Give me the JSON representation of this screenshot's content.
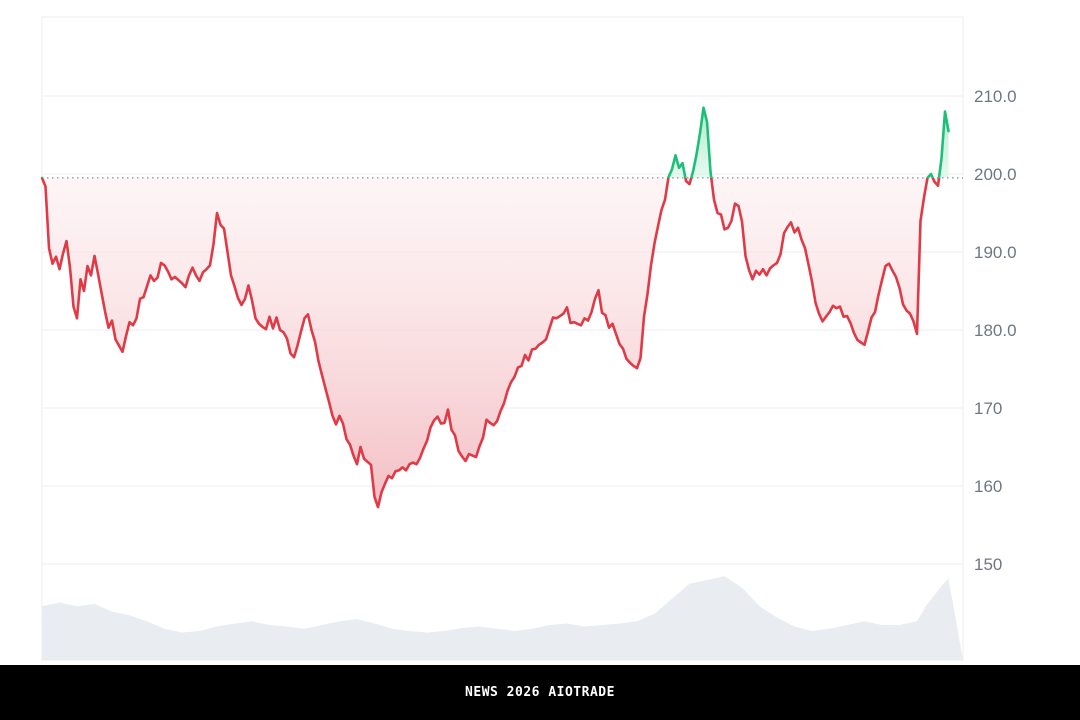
{
  "chart_data": {
    "type": "area",
    "title": "",
    "xlabel": "",
    "ylabel": "",
    "baseline": 199.5,
    "ylim": [
      140,
      220
    ],
    "yticks": [
      150,
      160,
      170,
      180,
      190,
      200,
      210
    ],
    "ytick_labels": [
      "150",
      "160",
      "170",
      "180.0",
      "190.0",
      "200.0",
      "210.0"
    ],
    "grid": true,
    "x_range": [
      0,
      100
    ],
    "series": [
      {
        "points": [
          [
            0,
            199.5
          ],
          [
            0.4,
            198.4
          ],
          [
            0.8,
            190.5
          ],
          [
            1.2,
            188.5
          ],
          [
            1.6,
            189.4
          ],
          [
            2,
            187.8
          ],
          [
            2.4,
            189.8
          ],
          [
            2.8,
            191.4
          ],
          [
            3.2,
            188
          ],
          [
            3.6,
            183
          ],
          [
            4,
            181.5
          ],
          [
            4.4,
            186.5
          ],
          [
            4.8,
            185
          ],
          [
            5.2,
            188.2
          ],
          [
            5.6,
            187
          ],
          [
            6,
            189.5
          ],
          [
            6.4,
            187.2
          ],
          [
            6.8,
            184.8
          ],
          [
            7.2,
            182.4
          ],
          [
            7.6,
            180.3
          ],
          [
            8,
            181.2
          ],
          [
            8.4,
            178.8
          ],
          [
            8.8,
            178
          ],
          [
            9.2,
            177.2
          ],
          [
            9.6,
            179.2
          ],
          [
            10,
            181
          ],
          [
            10.4,
            180.6
          ],
          [
            10.8,
            181.5
          ],
          [
            11.2,
            184
          ],
          [
            11.6,
            184.2
          ],
          [
            12,
            185.6
          ],
          [
            12.4,
            187
          ],
          [
            12.8,
            186.3
          ],
          [
            13.2,
            186.7
          ],
          [
            13.6,
            188.6
          ],
          [
            14,
            188.3
          ],
          [
            14.4,
            187.5
          ],
          [
            14.8,
            186.5
          ],
          [
            15.2,
            186.8
          ],
          [
            15.6,
            186.4
          ],
          [
            16,
            186
          ],
          [
            16.4,
            185.5
          ],
          [
            16.8,
            187
          ],
          [
            17.2,
            188
          ],
          [
            17.6,
            187
          ],
          [
            18,
            186.3
          ],
          [
            18.4,
            187.4
          ],
          [
            18.8,
            187.8
          ],
          [
            19.2,
            188.3
          ],
          [
            19.6,
            191
          ],
          [
            20,
            195
          ],
          [
            20.4,
            193.5
          ],
          [
            20.8,
            193
          ],
          [
            21.2,
            190
          ],
          [
            21.6,
            187
          ],
          [
            22,
            185.6
          ],
          [
            22.4,
            184.1
          ],
          [
            22.8,
            183.2
          ],
          [
            23.2,
            184
          ],
          [
            23.6,
            185.7
          ],
          [
            24,
            183.8
          ],
          [
            24.4,
            181.5
          ],
          [
            24.8,
            180.8
          ],
          [
            25.2,
            180.4
          ],
          [
            25.6,
            180.1
          ],
          [
            26,
            181.7
          ],
          [
            26.4,
            180.2
          ],
          [
            26.8,
            181.6
          ],
          [
            27.2,
            180
          ],
          [
            27.6,
            179.7
          ],
          [
            28,
            178.9
          ],
          [
            28.4,
            177
          ],
          [
            28.8,
            176.5
          ],
          [
            29.2,
            178
          ],
          [
            29.6,
            179.8
          ],
          [
            30,
            181.5
          ],
          [
            30.4,
            182
          ],
          [
            30.8,
            180
          ],
          [
            31.2,
            178.5
          ],
          [
            31.6,
            176
          ],
          [
            32,
            174.2
          ],
          [
            32.4,
            172.5
          ],
          [
            32.8,
            170.8
          ],
          [
            33.2,
            169
          ],
          [
            33.6,
            167.9
          ],
          [
            34,
            169
          ],
          [
            34.4,
            168
          ],
          [
            34.8,
            166
          ],
          [
            35.2,
            165.3
          ],
          [
            35.6,
            163.9
          ],
          [
            36,
            162.8
          ],
          [
            36.4,
            165
          ],
          [
            36.8,
            163.5
          ],
          [
            37.2,
            163.1
          ],
          [
            37.6,
            162.7
          ],
          [
            38,
            158.6
          ],
          [
            38.4,
            157.3
          ],
          [
            38.8,
            159.2
          ],
          [
            39.2,
            160.3
          ],
          [
            39.6,
            161.3
          ],
          [
            40,
            161
          ],
          [
            40.4,
            161.9
          ],
          [
            40.8,
            162
          ],
          [
            41.2,
            162.4
          ],
          [
            41.6,
            162
          ],
          [
            42,
            162.8
          ],
          [
            42.4,
            163
          ],
          [
            42.8,
            162.8
          ],
          [
            43.2,
            163.6
          ],
          [
            43.6,
            164.8
          ],
          [
            44,
            165.8
          ],
          [
            44.4,
            167.5
          ],
          [
            44.8,
            168.4
          ],
          [
            45.2,
            168.9
          ],
          [
            45.6,
            168
          ],
          [
            46,
            168.1
          ],
          [
            46.4,
            169.8
          ],
          [
            46.8,
            167.2
          ],
          [
            47.2,
            166.5
          ],
          [
            47.6,
            164.5
          ],
          [
            48,
            163.8
          ],
          [
            48.4,
            163.2
          ],
          [
            48.8,
            164.1
          ],
          [
            49.2,
            163.9
          ],
          [
            49.6,
            163.7
          ],
          [
            50,
            165.1
          ],
          [
            50.4,
            166.2
          ],
          [
            50.8,
            168.5
          ],
          [
            51.2,
            168.1
          ],
          [
            51.6,
            167.8
          ],
          [
            52,
            168.3
          ],
          [
            52.4,
            169.6
          ],
          [
            52.8,
            170.6
          ],
          [
            53.2,
            172.2
          ],
          [
            53.6,
            173.3
          ],
          [
            54,
            174
          ],
          [
            54.4,
            175.2
          ],
          [
            54.8,
            175.4
          ],
          [
            55.2,
            176.8
          ],
          [
            55.6,
            176.1
          ],
          [
            56,
            177.5
          ],
          [
            56.4,
            177.6
          ],
          [
            56.8,
            178.1
          ],
          [
            57.2,
            178.4
          ],
          [
            57.6,
            178.8
          ],
          [
            58,
            180.2
          ],
          [
            58.4,
            181.6
          ],
          [
            58.8,
            181.5
          ],
          [
            59.2,
            181.8
          ],
          [
            59.6,
            182.1
          ],
          [
            60,
            182.9
          ],
          [
            60.4,
            180.9
          ],
          [
            60.8,
            181
          ],
          [
            61.2,
            180.8
          ],
          [
            61.6,
            180.6
          ],
          [
            62,
            181.5
          ],
          [
            62.4,
            181.2
          ],
          [
            62.8,
            182.3
          ],
          [
            63.2,
            184
          ],
          [
            63.6,
            185.1
          ],
          [
            64,
            182.2
          ],
          [
            64.4,
            181.9
          ],
          [
            64.8,
            180.3
          ],
          [
            65.2,
            180.8
          ],
          [
            65.6,
            179.5
          ],
          [
            66,
            178.2
          ],
          [
            66.4,
            177.6
          ],
          [
            66.8,
            176.3
          ],
          [
            67.2,
            175.8
          ],
          [
            67.6,
            175.4
          ],
          [
            68,
            175.1
          ],
          [
            68.4,
            176.4
          ],
          [
            68.8,
            181.7
          ],
          [
            69.2,
            184.6
          ],
          [
            69.6,
            188.3
          ],
          [
            70,
            191.1
          ],
          [
            70.4,
            193.3
          ],
          [
            70.8,
            195.4
          ],
          [
            71.2,
            196.7
          ],
          [
            71.6,
            199.6
          ],
          [
            72,
            200.6
          ],
          [
            72.4,
            202.4
          ],
          [
            72.8,
            200.8
          ],
          [
            73.2,
            201.4
          ],
          [
            73.6,
            199.1
          ],
          [
            74,
            198.7
          ],
          [
            74.4,
            200.3
          ],
          [
            74.8,
            202.5
          ],
          [
            75.2,
            205.2
          ],
          [
            75.6,
            208.5
          ],
          [
            76,
            206.7
          ],
          [
            76.4,
            200.3
          ],
          [
            76.8,
            196.7
          ],
          [
            77.2,
            195
          ],
          [
            77.6,
            194.8
          ],
          [
            78,
            192.9
          ],
          [
            78.4,
            193.1
          ],
          [
            78.8,
            194
          ],
          [
            79.2,
            196.2
          ],
          [
            79.6,
            195.9
          ],
          [
            80,
            193.9
          ],
          [
            80.4,
            189.5
          ],
          [
            80.8,
            187.7
          ],
          [
            81.2,
            186.5
          ],
          [
            81.6,
            187.6
          ],
          [
            82,
            187.1
          ],
          [
            82.4,
            187.8
          ],
          [
            82.8,
            187
          ],
          [
            83.2,
            187.9
          ],
          [
            83.6,
            188.3
          ],
          [
            84,
            188.6
          ],
          [
            84.4,
            189.7
          ],
          [
            84.8,
            192.4
          ],
          [
            85.2,
            193.2
          ],
          [
            85.6,
            193.8
          ],
          [
            86,
            192.5
          ],
          [
            86.4,
            193.1
          ],
          [
            86.8,
            191.6
          ],
          [
            87.2,
            190.5
          ],
          [
            87.6,
            188.4
          ],
          [
            88,
            186.2
          ],
          [
            88.4,
            183.5
          ],
          [
            88.8,
            182.1
          ],
          [
            89.2,
            181.1
          ],
          [
            89.6,
            181.7
          ],
          [
            90,
            182.3
          ],
          [
            90.4,
            183.1
          ],
          [
            90.8,
            182.8
          ],
          [
            91.2,
            183
          ],
          [
            91.6,
            181.7
          ],
          [
            92,
            181.8
          ],
          [
            92.4,
            180.9
          ],
          [
            92.8,
            179.6
          ],
          [
            93.2,
            178.7
          ],
          [
            93.6,
            178.4
          ],
          [
            94,
            178.1
          ],
          [
            94.4,
            179.8
          ],
          [
            94.8,
            181.6
          ],
          [
            95.2,
            182.3
          ],
          [
            95.6,
            184.5
          ],
          [
            96,
            186.4
          ],
          [
            96.4,
            188.2
          ],
          [
            96.8,
            188.5
          ],
          [
            97.2,
            187.6
          ],
          [
            97.6,
            186.8
          ],
          [
            98,
            185.4
          ],
          [
            98.4,
            183.3
          ],
          [
            98.8,
            182.5
          ],
          [
            99.2,
            182.1
          ],
          [
            99.6,
            181.1
          ],
          [
            100,
            179.5
          ],
          [
            100.4,
            194
          ],
          [
            100.8,
            197
          ],
          [
            101.2,
            199.5
          ],
          [
            101.6,
            200
          ],
          [
            102,
            199
          ],
          [
            102.4,
            198.5
          ],
          [
            102.8,
            202
          ],
          [
            103.2,
            208
          ],
          [
            103.6,
            205.5
          ]
        ]
      }
    ],
    "volume": [
      [
        0,
        0.45
      ],
      [
        2,
        0.5
      ],
      [
        4,
        0.45
      ],
      [
        6,
        0.48
      ],
      [
        8,
        0.38
      ],
      [
        10,
        0.33
      ],
      [
        12,
        0.25
      ],
      [
        14,
        0.15
      ],
      [
        16,
        0.1
      ],
      [
        18,
        0.12
      ],
      [
        20,
        0.18
      ],
      [
        22,
        0.22
      ],
      [
        24,
        0.25
      ],
      [
        26,
        0.2
      ],
      [
        28,
        0.18
      ],
      [
        30,
        0.15
      ],
      [
        32,
        0.2
      ],
      [
        34,
        0.25
      ],
      [
        36,
        0.28
      ],
      [
        38,
        0.22
      ],
      [
        40,
        0.15
      ],
      [
        42,
        0.12
      ],
      [
        44,
        0.1
      ],
      [
        46,
        0.12
      ],
      [
        48,
        0.16
      ],
      [
        50,
        0.18
      ],
      [
        52,
        0.15
      ],
      [
        54,
        0.12
      ],
      [
        56,
        0.15
      ],
      [
        58,
        0.2
      ],
      [
        60,
        0.22
      ],
      [
        62,
        0.18
      ],
      [
        64,
        0.2
      ],
      [
        66,
        0.22
      ],
      [
        68,
        0.25
      ],
      [
        70,
        0.35
      ],
      [
        72,
        0.55
      ],
      [
        74,
        0.75
      ],
      [
        76,
        0.8
      ],
      [
        78,
        0.85
      ],
      [
        80,
        0.7
      ],
      [
        82,
        0.45
      ],
      [
        84,
        0.3
      ],
      [
        86,
        0.18
      ],
      [
        88,
        0.12
      ],
      [
        90,
        0.15
      ],
      [
        92,
        0.2
      ],
      [
        94,
        0.25
      ],
      [
        96,
        0.2
      ],
      [
        98,
        0.2
      ],
      [
        100,
        0.25
      ],
      [
        101,
        0.45
      ],
      [
        102,
        0.6
      ],
      [
        103,
        0.75
      ],
      [
        103.6,
        0.82
      ]
    ],
    "colors": {
      "below_line": "#e03a47",
      "above_line": "#1dbf78",
      "below_fill": "#f7c9cd",
      "above_fill": "#bdeed6",
      "volume": "#e9edf1",
      "grid": "#eceef1",
      "baseline": "#8a8f96",
      "tick": "#6f7782"
    }
  },
  "footer": {
    "text": "NEWS 2026 AIOTRADE"
  }
}
